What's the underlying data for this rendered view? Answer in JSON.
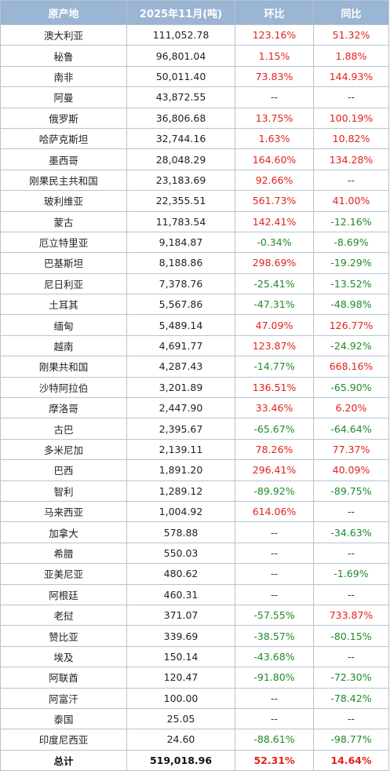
{
  "colors": {
    "header_bg": "#9bb5d4",
    "positive": "#e0231d",
    "negative": "#1f8a2a",
    "border": "#b9c3cf"
  },
  "headers": [
    "原产地",
    "2025年11月(吨)",
    "环比",
    "同比"
  ],
  "rows": [
    [
      "澳大利亚",
      "111,052.78",
      "123.16%",
      "51.32%"
    ],
    [
      "秘鲁",
      "96,801.04",
      "1.15%",
      "1.88%"
    ],
    [
      "南非",
      "50,011.40",
      "73.83%",
      "144.93%"
    ],
    [
      "阿曼",
      "43,872.55",
      "--",
      "--"
    ],
    [
      "俄罗斯",
      "36,806.68",
      "13.75%",
      "100.19%"
    ],
    [
      "哈萨克斯坦",
      "32,744.16",
      "1.63%",
      "10.82%"
    ],
    [
      "墨西哥",
      "28,048.29",
      "164.60%",
      "134.28%"
    ],
    [
      "刚果民主共和国",
      "23,183.69",
      "92.66%",
      "--"
    ],
    [
      "玻利维亚",
      "22,355.51",
      "561.73%",
      "41.00%"
    ],
    [
      "蒙古",
      "11,783.54",
      "142.41%",
      "-12.16%"
    ],
    [
      "厄立特里亚",
      "9,184.87",
      "-0.34%",
      "-8.69%"
    ],
    [
      "巴基斯坦",
      "8,188.86",
      "298.69%",
      "-19.29%"
    ],
    [
      "尼日利亚",
      "7,378.76",
      "-25.41%",
      "-13.52%"
    ],
    [
      "土耳其",
      "5,567.86",
      "-47.31%",
      "-48.98%"
    ],
    [
      "缅甸",
      "5,489.14",
      "47.09%",
      "126.77%"
    ],
    [
      "越南",
      "4,691.77",
      "123.87%",
      "-24.92%"
    ],
    [
      "刚果共和国",
      "4,287.43",
      "-14.77%",
      "668.16%"
    ],
    [
      "沙特阿拉伯",
      "3,201.89",
      "136.51%",
      "-65.90%"
    ],
    [
      "摩洛哥",
      "2,447.90",
      "33.46%",
      "6.20%"
    ],
    [
      "古巴",
      "2,395.67",
      "-65.67%",
      "-64.64%"
    ],
    [
      "多米尼加",
      "2,139.11",
      "78.26%",
      "77.37%"
    ],
    [
      "巴西",
      "1,891.20",
      "296.41%",
      "40.09%"
    ],
    [
      "智利",
      "1,289.12",
      "-89.92%",
      "-89.75%"
    ],
    [
      "马来西亚",
      "1,004.92",
      "614.06%",
      "--"
    ],
    [
      "加拿大",
      "578.88",
      "--",
      "-34.63%"
    ],
    [
      "希腊",
      "550.03",
      "--",
      "--"
    ],
    [
      "亚美尼亚",
      "480.62",
      "--",
      "-1.69%"
    ],
    [
      "阿根廷",
      "460.31",
      "--",
      "--"
    ],
    [
      "老挝",
      "371.07",
      "-57.55%",
      "733.87%"
    ],
    [
      "赞比亚",
      "339.69",
      "-38.57%",
      "-80.15%"
    ],
    [
      "埃及",
      "150.14",
      "-43.68%",
      "--"
    ],
    [
      "阿联酋",
      "120.47",
      "-91.80%",
      "-72.30%"
    ],
    [
      "阿富汗",
      "100.00",
      "--",
      "-78.42%"
    ],
    [
      "泰国",
      "25.05",
      "--",
      "--"
    ],
    [
      "印度尼西亚",
      "24.60",
      "-88.61%",
      "-98.77%"
    ]
  ],
  "total": [
    "总计",
    "519,018.96",
    "52.31%",
    "14.64%"
  ]
}
